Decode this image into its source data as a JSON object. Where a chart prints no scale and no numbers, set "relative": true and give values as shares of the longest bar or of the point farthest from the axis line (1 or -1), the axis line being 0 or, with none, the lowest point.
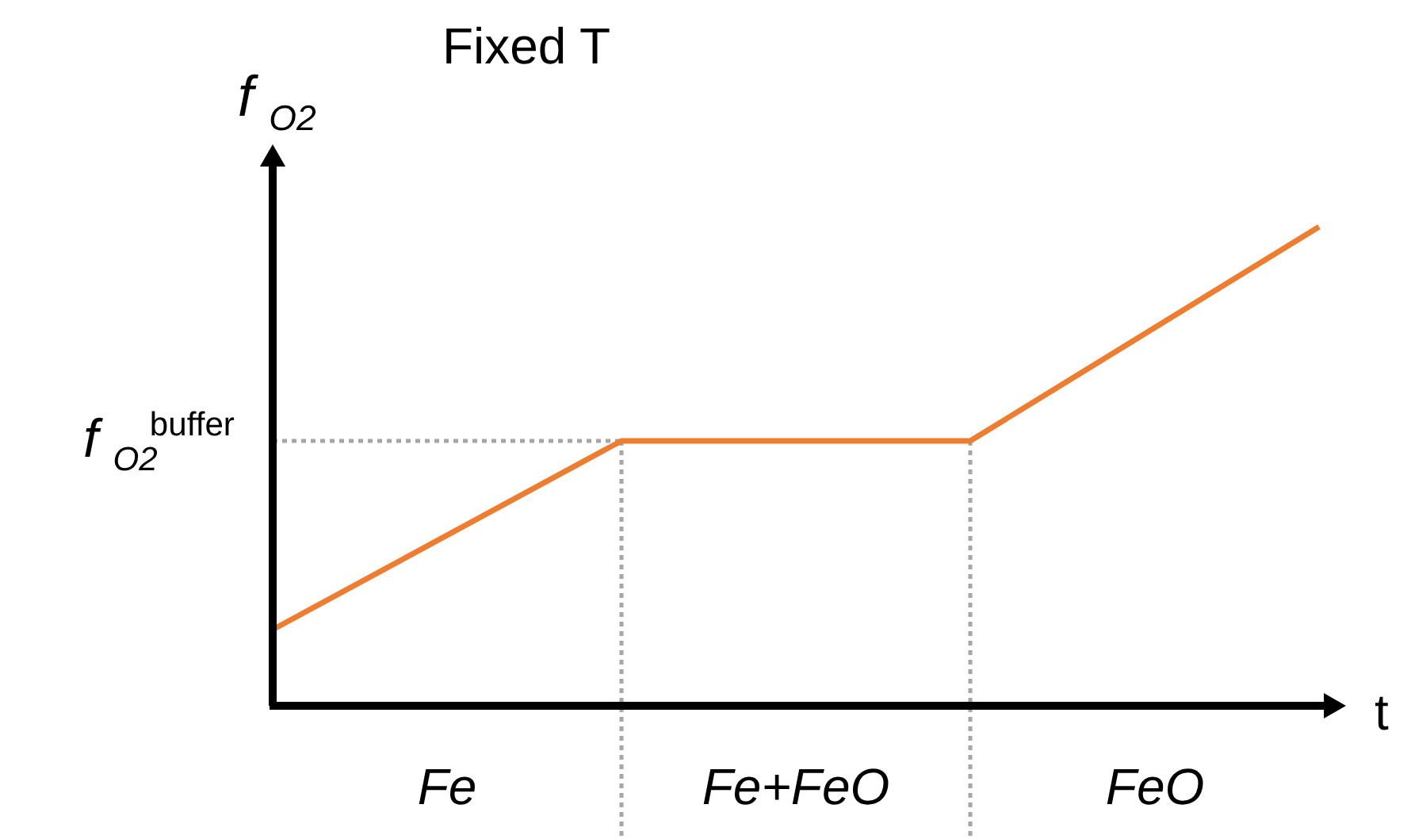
{
  "chart_data": {
    "type": "line",
    "title": "Fixed T",
    "xlabel": "t",
    "ylabel": "f$_{O2}$",
    "relative": true,
    "marker": "none",
    "line_style": "solid",
    "categories": [
      null,
      null,
      null,
      null
    ],
    "series": [
      {
        "color": "#ed7d31",
        "values": [
          0.159,
          0.553,
          0.553,
          1
        ]
      }
    ],
    "ref_lines": [
      {
        "axis": "y",
        "value": 0.553,
        "label": "f$_{O2}$$^{buffer}$",
        "color": "#a6a6a6",
        "line_style": "dotted"
      }
    ],
    "annotations": [
      "Fe",
      "Fe+FeO",
      "FeO"
    ]
  }
}
